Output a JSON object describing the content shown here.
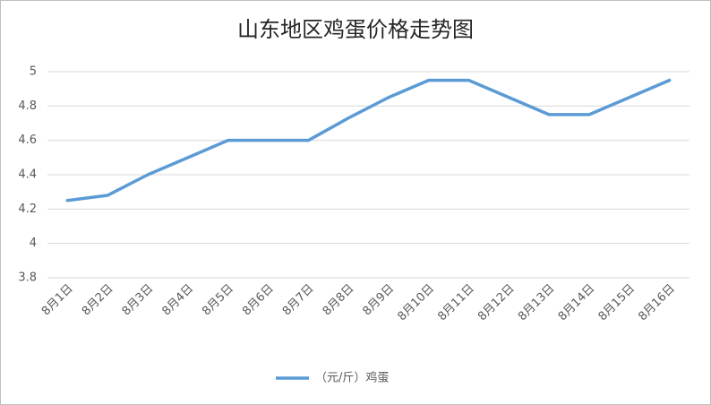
{
  "chart_data": {
    "type": "line",
    "title": "山东地区鸡蛋价格走势图",
    "categories": [
      "8月1日",
      "8月2日",
      "8月3日",
      "8月4日",
      "8月5日",
      "8月6日",
      "8月7日",
      "8月8日",
      "8月9日",
      "8月10日",
      "8月11日",
      "8月12日",
      "8月13日",
      "8月14日",
      "8月15日",
      "8月16日"
    ],
    "series": [
      {
        "name": "（元/斤）鸡蛋",
        "color": "#5b9bd5",
        "values": [
          4.25,
          4.28,
          4.4,
          4.5,
          4.6,
          4.6,
          4.6,
          4.73,
          4.85,
          4.95,
          4.95,
          4.85,
          4.75,
          4.75,
          4.85,
          4.95
        ]
      }
    ],
    "ylim": [
      3.8,
      5
    ],
    "yticks": [
      3.8,
      4,
      4.2,
      4.4,
      4.6,
      4.8,
      5
    ],
    "grid": true,
    "legend": "bottom"
  }
}
